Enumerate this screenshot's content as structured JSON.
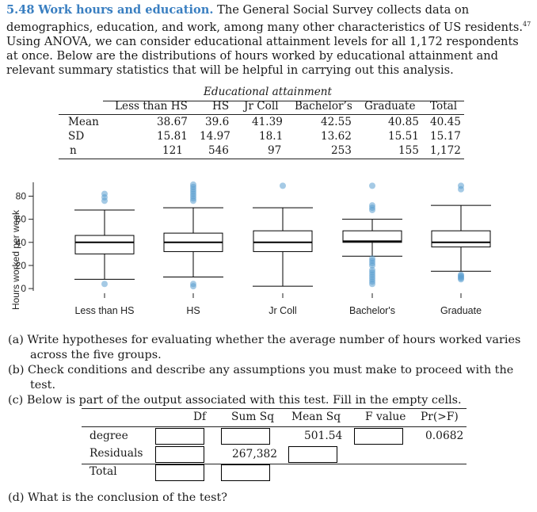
{
  "problem": {
    "number": "5.48",
    "title": "Work hours and education.",
    "body": "The General Social Survey collects data on demographics, education, and work, among many other characteristics of US residents.",
    "footnote": "47",
    "body2": "Using ANOVA, we can consider educational attainment levels for all 1,172 respondents at once. Below are the distributions of hours worked by educational attainment and relevant summary statistics that will be helpful in carrying out this analysis."
  },
  "stats_table": {
    "group_header": "Educational attainment",
    "columns": [
      "Less than HS",
      "HS",
      "Jr Coll",
      "Bachelor’s",
      "Graduate",
      "Total"
    ],
    "rows": [
      {
        "label": "Mean",
        "values": [
          "38.67",
          "39.6",
          "41.39",
          "42.55",
          "40.85",
          "40.45"
        ]
      },
      {
        "label": "SD",
        "values": [
          "15.81",
          "14.97",
          "18.1",
          "13.62",
          "15.51",
          "15.17"
        ]
      },
      {
        "label": "n",
        "values": [
          "121",
          "546",
          "97",
          "253",
          "155",
          "1,172"
        ]
      }
    ]
  },
  "chart_data": {
    "type": "boxplot",
    "ylabel": "Hours worked per week",
    "yticks": [
      0,
      20,
      40,
      60,
      80
    ],
    "ylim": [
      -2,
      92
    ],
    "categories": [
      "Less than HS",
      "HS",
      "Jr Coll",
      "Bachelor’s",
      "Graduate"
    ],
    "boxes": [
      {
        "whisker_low": 8,
        "q1": 30,
        "median": 40,
        "q3": 46,
        "whisker_high": 68,
        "outliers": [
          4,
          76,
          79,
          82
        ]
      },
      {
        "whisker_low": 10,
        "q1": 32,
        "median": 40,
        "q3": 48,
        "whisker_high": 70,
        "outliers": [
          2,
          4,
          76,
          78,
          80,
          82,
          84,
          86,
          88,
          90
        ]
      },
      {
        "whisker_low": 2,
        "q1": 32,
        "median": 40,
        "q3": 50,
        "whisker_high": 70,
        "outliers": [
          89
        ]
      },
      {
        "whisker_low": 28,
        "q1": 40,
        "median": 41,
        "q3": 50,
        "whisker_high": 60,
        "outliers": [
          4,
          6,
          8,
          10,
          12,
          14,
          16,
          20,
          22,
          24,
          26,
          68,
          70,
          72,
          89
        ]
      },
      {
        "whisker_low": 15,
        "q1": 36,
        "median": 40,
        "q3": 50,
        "whisker_high": 72,
        "outliers": [
          8,
          9,
          10,
          11,
          12,
          86,
          89
        ]
      }
    ],
    "box_color": "#000000",
    "point_color": "#5b9fd0"
  },
  "parts": {
    "a": "(a) Write hypotheses for evaluating whether the average number of hours worked varies across the five groups.",
    "b": "(b) Check conditions and describe any assumptions you must make to proceed with the test.",
    "c": "(c) Below is part of the output associated with this test. Fill in the empty cells.",
    "d": "(d) What is the conclusion of the test?"
  },
  "anova_table": {
    "headers": [
      "Df",
      "Sum Sq",
      "Mean Sq",
      "F value",
      "Pr(>F)"
    ],
    "rows": [
      {
        "label": "degree",
        "mean_sq": "501.54",
        "p_value": "0.0682"
      },
      {
        "label": "Residuals",
        "sum_sq": "267,382"
      },
      {
        "label": "Total"
      }
    ]
  }
}
